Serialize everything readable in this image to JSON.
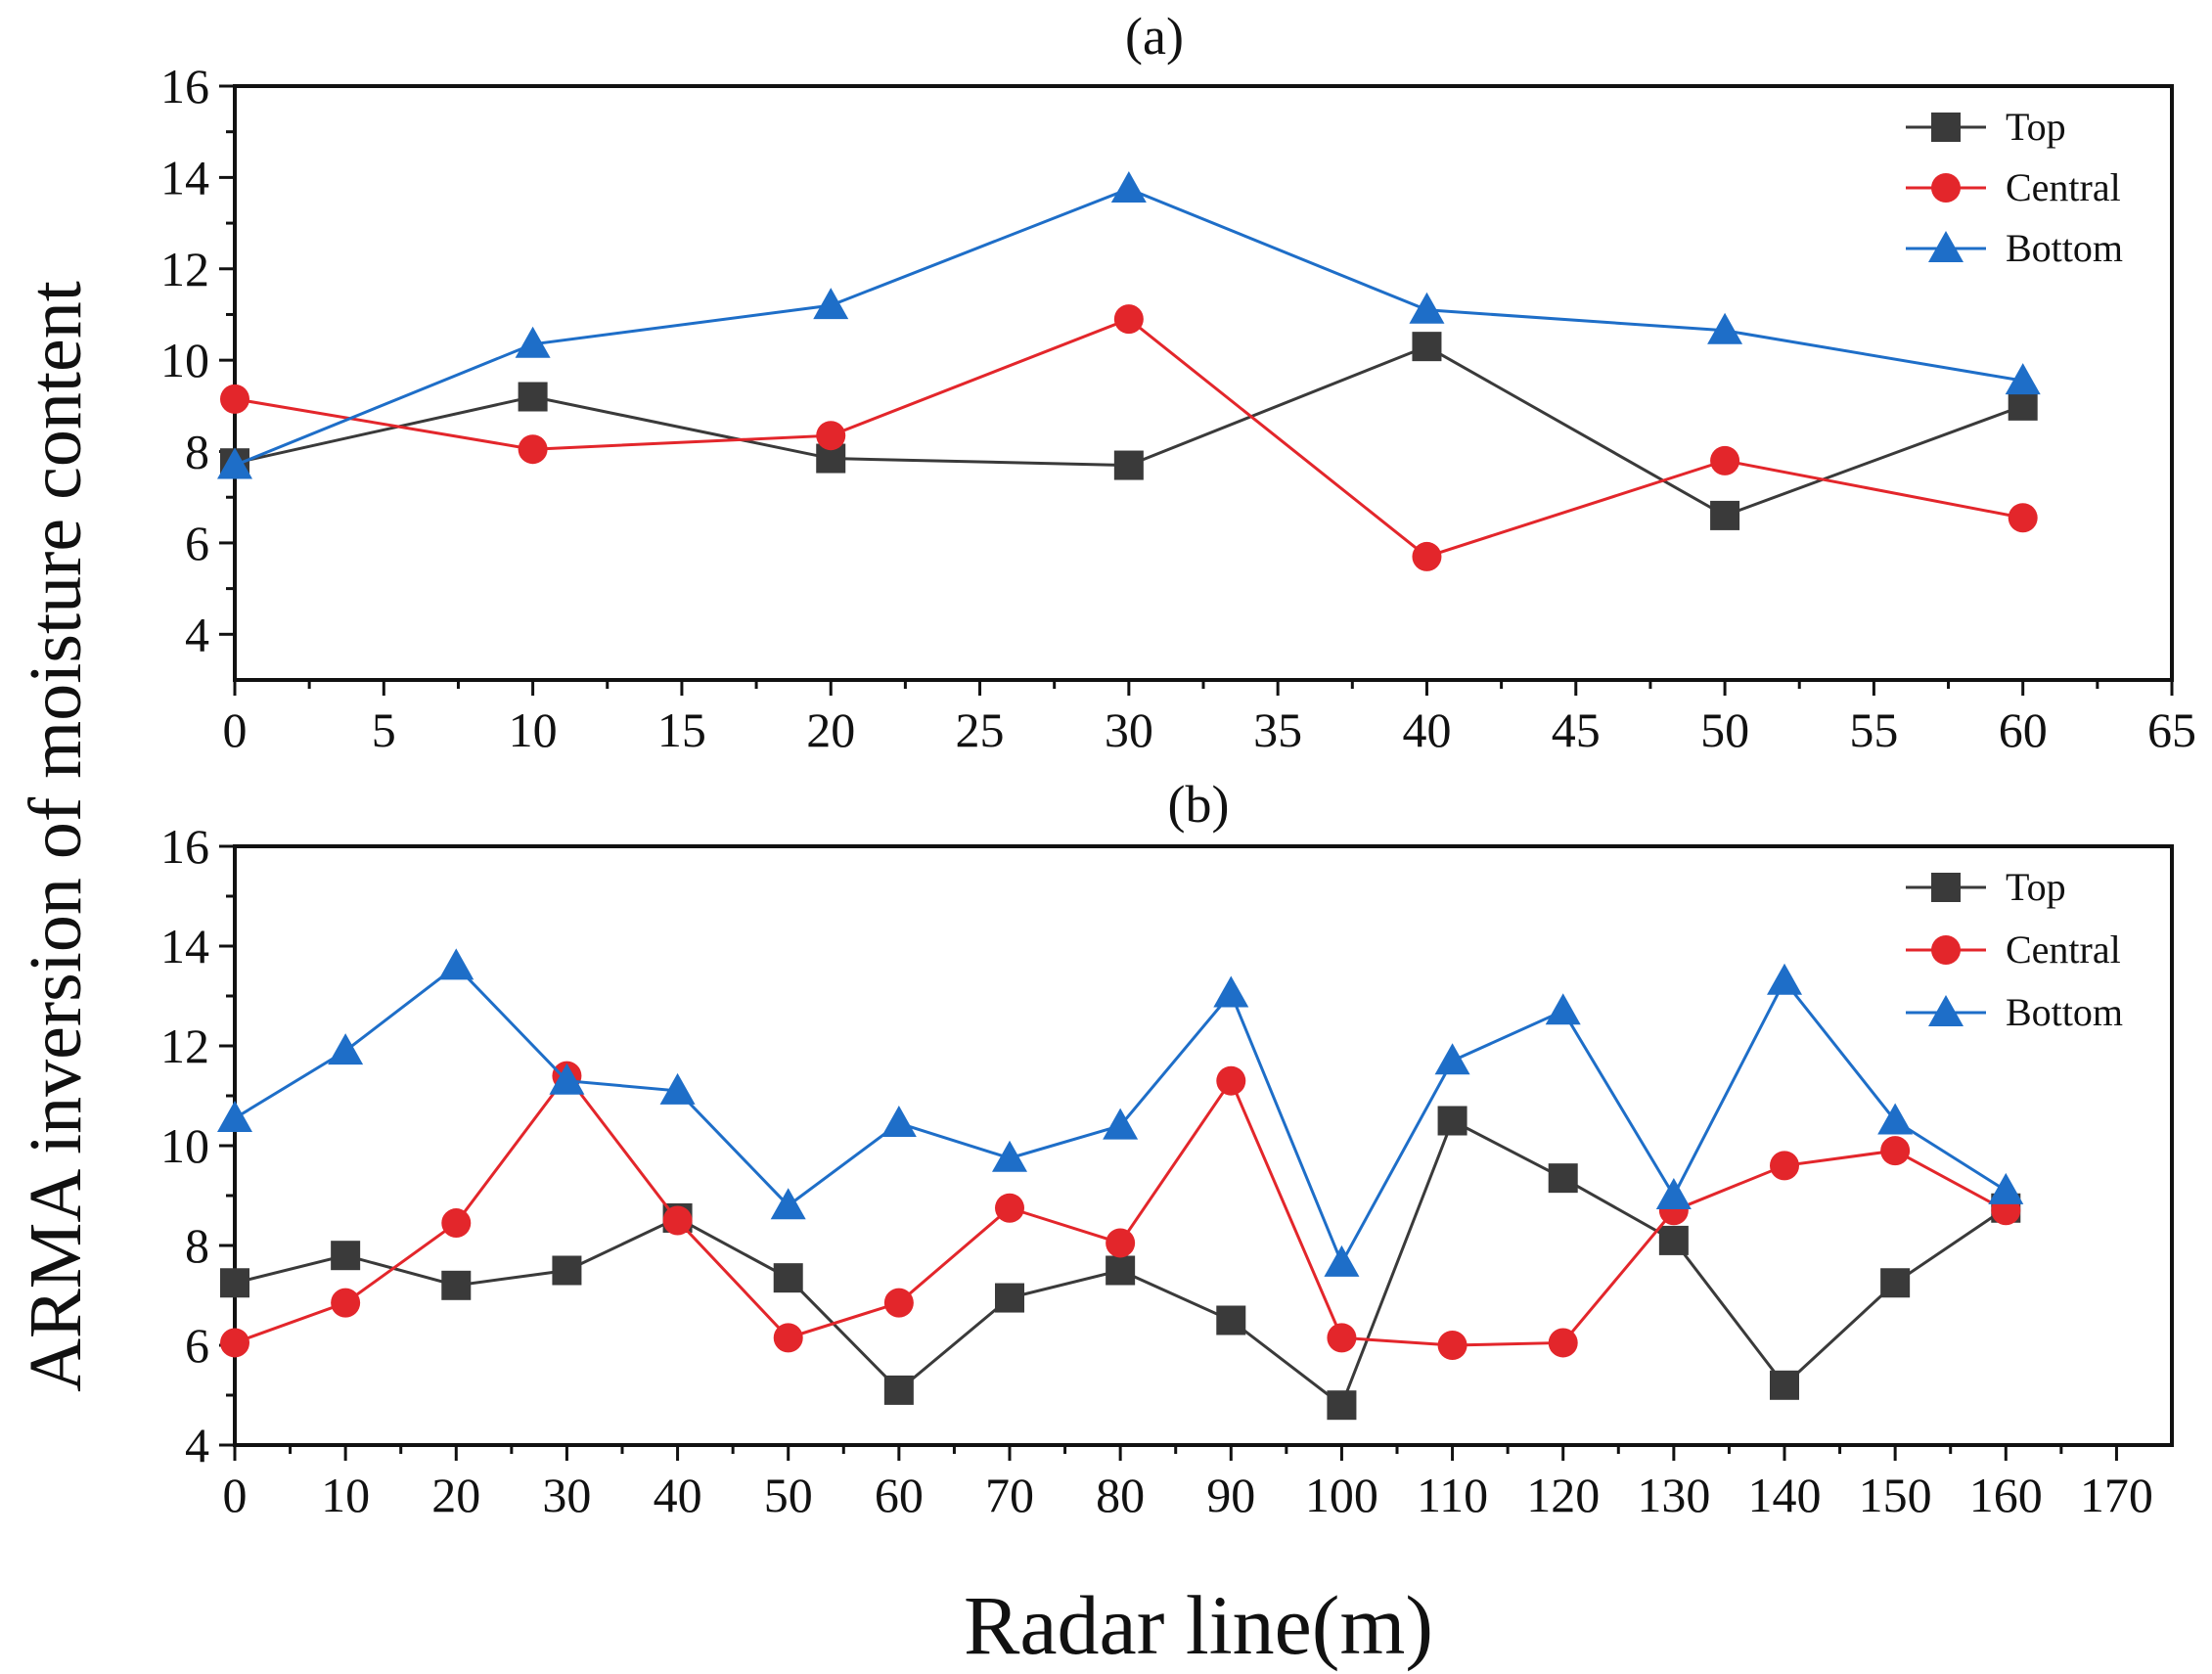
{
  "figure": {
    "ylabel": "ARMA inversion of moisture content",
    "xlabel": "Radar line(m)"
  },
  "colors": {
    "top": "#3a3a3a",
    "central": "#e3262b",
    "bottom": "#1e6ec8"
  },
  "chart_data": [
    {
      "type": "line",
      "title": "(a)",
      "xlabel": "Radar line(m)",
      "ylabel": "ARMA inversion of moisture content",
      "xlim": [
        0,
        65
      ],
      "ylim": [
        3,
        16
      ],
      "xticks": [
        0,
        5,
        10,
        15,
        20,
        25,
        30,
        35,
        40,
        45,
        50,
        55,
        60,
        65
      ],
      "yticks": [
        4,
        6,
        8,
        10,
        12,
        14,
        16
      ],
      "x": [
        0,
        10,
        20,
        30,
        40,
        50,
        60
      ],
      "legend_position": "top-right",
      "series": [
        {
          "name": "Top",
          "marker": "square",
          "color": "#3a3a3a",
          "values": [
            7.75,
            9.2,
            7.85,
            7.7,
            10.3,
            6.6,
            9.0
          ]
        },
        {
          "name": "Central",
          "marker": "circle",
          "color": "#e3262b",
          "values": [
            9.15,
            8.05,
            8.35,
            10.9,
            5.7,
            7.8,
            6.55
          ]
        },
        {
          "name": "Bottom",
          "marker": "triangle",
          "color": "#1e6ec8",
          "values": [
            7.7,
            10.35,
            11.2,
            13.75,
            11.1,
            10.65,
            9.55
          ]
        }
      ]
    },
    {
      "type": "line",
      "title": "(b)",
      "xlabel": "Radar line(m)",
      "ylabel": "ARMA inversion of moisture content",
      "xlim": [
        0,
        175
      ],
      "ylim": [
        4,
        16
      ],
      "xticks": [
        0,
        10,
        20,
        30,
        40,
        50,
        60,
        70,
        80,
        90,
        100,
        110,
        120,
        130,
        140,
        150,
        160,
        170
      ],
      "yticks": [
        4,
        6,
        8,
        10,
        12,
        14,
        16
      ],
      "x": [
        0,
        10,
        20,
        30,
        40,
        50,
        60,
        70,
        80,
        90,
        100,
        110,
        120,
        130,
        140,
        150,
        160
      ],
      "legend_position": "top-right",
      "series": [
        {
          "name": "Top",
          "marker": "square",
          "color": "#3a3a3a",
          "values": [
            7.25,
            7.8,
            7.2,
            7.5,
            8.55,
            7.35,
            5.1,
            6.95,
            7.5,
            6.5,
            4.8,
            10.5,
            9.35,
            8.1,
            5.2,
            7.25,
            8.75
          ]
        },
        {
          "name": "Central",
          "marker": "circle",
          "color": "#e3262b",
          "values": [
            6.05,
            6.85,
            8.45,
            11.4,
            8.5,
            6.15,
            6.85,
            8.75,
            8.05,
            11.3,
            6.15,
            6.0,
            6.05,
            8.7,
            9.6,
            9.9,
            8.7
          ]
        },
        {
          "name": "Bottom",
          "marker": "triangle",
          "color": "#1e6ec8",
          "values": [
            10.55,
            11.9,
            13.6,
            11.3,
            11.1,
            8.8,
            10.45,
            9.75,
            10.4,
            13.05,
            7.65,
            11.7,
            12.7,
            9.0,
            13.3,
            10.5,
            9.1
          ]
        }
      ]
    }
  ]
}
